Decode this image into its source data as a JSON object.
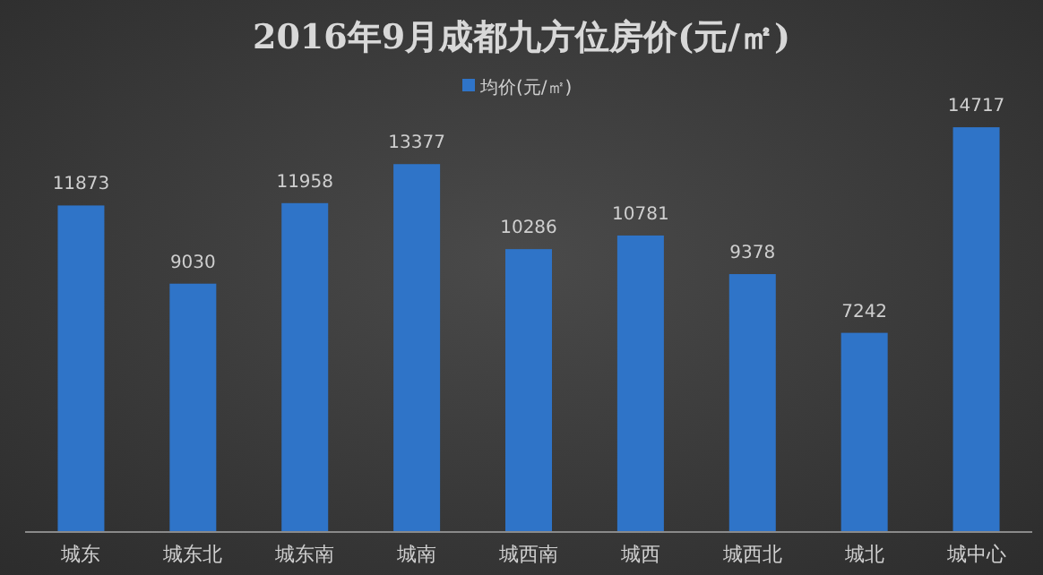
{
  "chart_data": {
    "type": "bar",
    "title": "2016年9月成都九方位房价(元/㎡)",
    "categories": [
      "城东",
      "城东北",
      "城东南",
      "城南",
      "城西南",
      "城西",
      "城西北",
      "城北",
      "城中心"
    ],
    "series": [
      {
        "name": "均价(元/㎡)",
        "color": "#2f74c8",
        "values": [
          11873,
          9030,
          11958,
          13377,
          10286,
          10781,
          9378,
          7242,
          14717
        ]
      }
    ],
    "data_labels": true,
    "legend": "top"
  }
}
